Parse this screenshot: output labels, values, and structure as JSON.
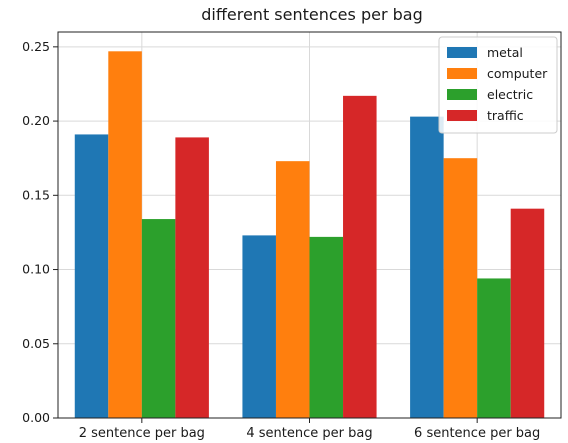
{
  "chart_data": {
    "type": "bar",
    "title": "different sentences per bag",
    "xlabel": "",
    "ylabel": "",
    "categories": [
      "2 sentence per bag",
      "4 sentence per bag",
      "6 sentence per bag"
    ],
    "series": [
      {
        "name": "metal",
        "color": "#1f77b4",
        "values": [
          0.191,
          0.123,
          0.203
        ]
      },
      {
        "name": "computer",
        "color": "#ff7f0e",
        "values": [
          0.247,
          0.173,
          0.175
        ]
      },
      {
        "name": "electric",
        "color": "#2ca02c",
        "values": [
          0.134,
          0.122,
          0.094
        ]
      },
      {
        "name": "traffic",
        "color": "#d62728",
        "values": [
          0.189,
          0.217,
          0.141
        ]
      }
    ],
    "ylim": [
      0,
      0.26
    ],
    "yticks": [
      "0.00",
      "0.05",
      "0.10",
      "0.15",
      "0.20",
      "0.25"
    ],
    "grid": true,
    "legend_position": "top-right"
  }
}
